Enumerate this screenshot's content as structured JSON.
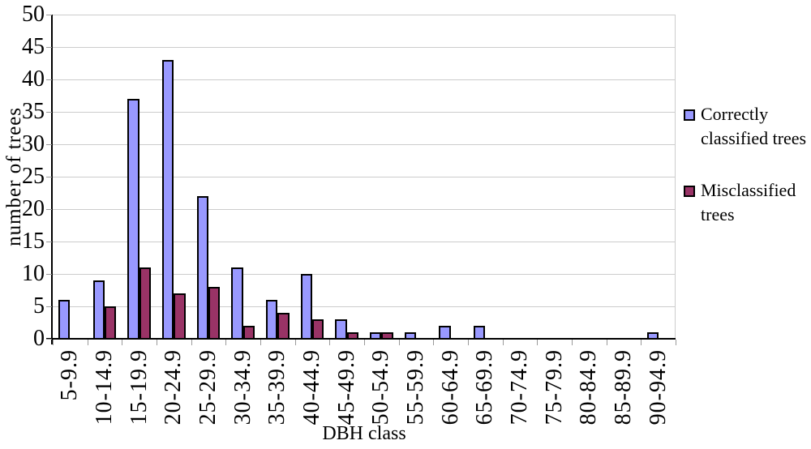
{
  "chart_data": {
    "type": "bar",
    "title": "",
    "xlabel": "DBH class",
    "ylabel": "number of trees",
    "categories": [
      "5-9.9",
      "10-14.9",
      "15-19.9",
      "20-24.9",
      "25-29.9",
      "30-34.9",
      "35-39.9",
      "40-44.9",
      "45-49.9",
      "50-54.9",
      "55-59.9",
      "60-64.9",
      "65-69.9",
      "70-74.9",
      "75-79.9",
      "80-84.9",
      "85-89.9",
      "90-94.9"
    ],
    "series": [
      {
        "name": "Correctly classified trees",
        "color": "#9999FF",
        "values": [
          6,
          9,
          37,
          43,
          22,
          11,
          6,
          10,
          3,
          1,
          1,
          2,
          2,
          0,
          0,
          0,
          0,
          1
        ]
      },
      {
        "name": "Misclassified trees",
        "color": "#993366",
        "values": [
          0,
          5,
          11,
          7,
          8,
          2,
          4,
          3,
          1,
          1,
          0,
          0,
          0,
          0,
          0,
          0,
          0,
          0
        ]
      }
    ],
    "ylim": [
      0,
      50
    ],
    "ytick_step": 5,
    "yticks": [
      "0",
      "5",
      "10",
      "15",
      "20",
      "25",
      "30",
      "35",
      "40",
      "45",
      "50"
    ],
    "grid": true,
    "legend_position": "right",
    "legend_items": [
      {
        "label": "Correctly classified trees",
        "color": "#9999FF"
      },
      {
        "label": "Misclassified trees",
        "color": "#993366"
      }
    ]
  },
  "colors": {
    "background": "#ffffff",
    "gridline": "#cccccc",
    "axis": "#000000",
    "bar_border": "#000000",
    "series_correct": "#9999FF",
    "series_misclassified": "#993366"
  }
}
